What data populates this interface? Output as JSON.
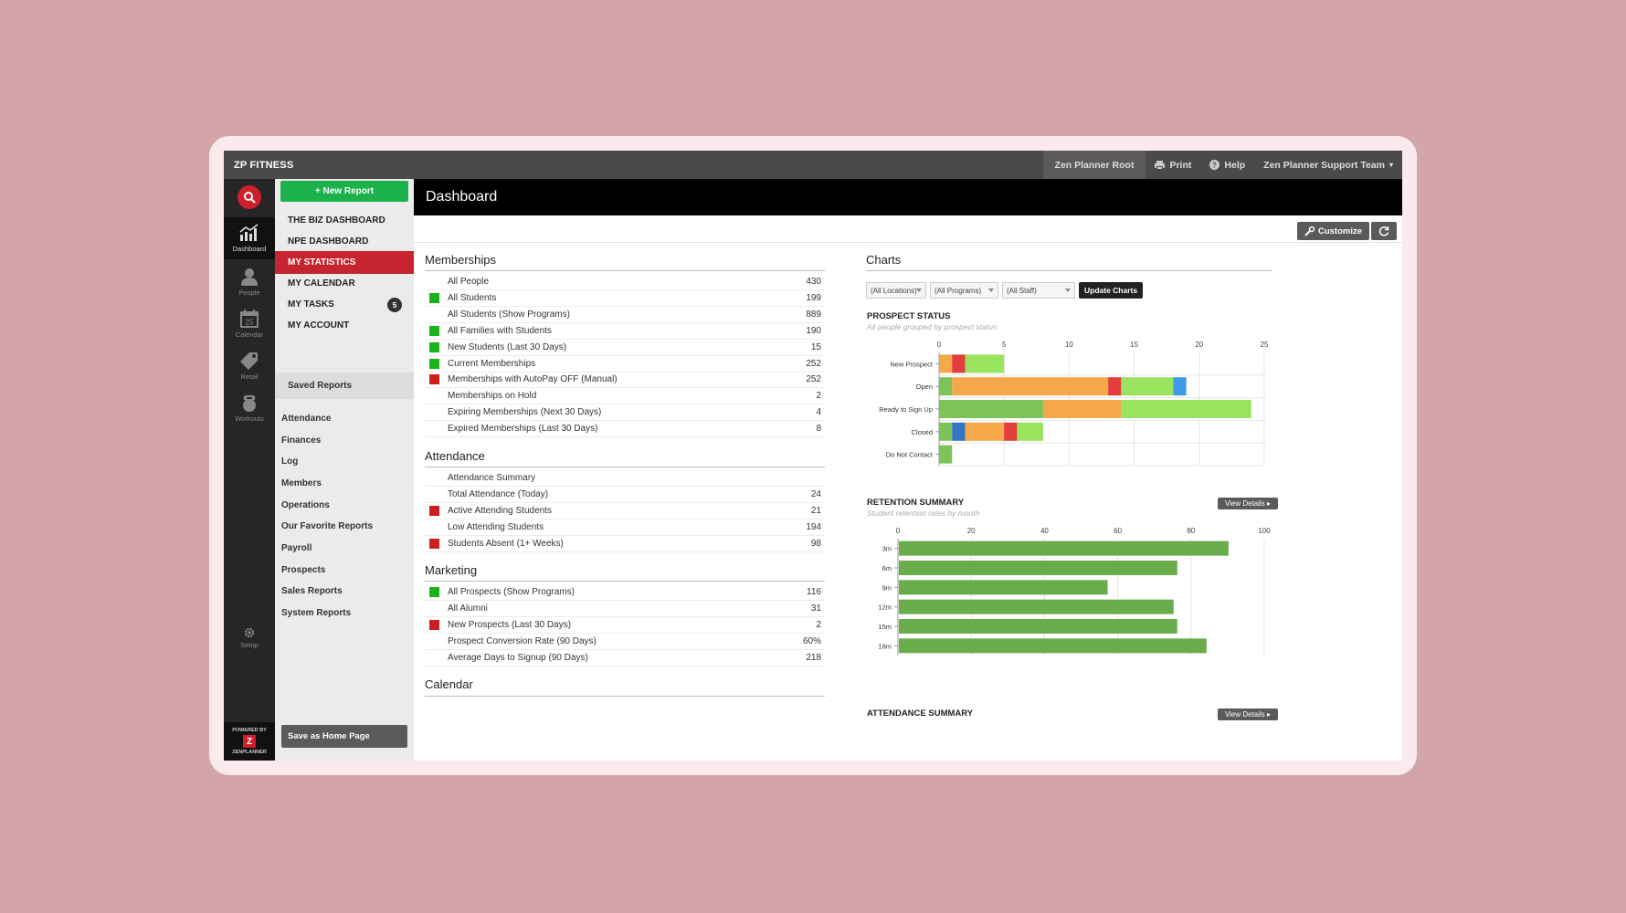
{
  "app": {
    "brand": "ZP FITNESS"
  },
  "topbar": {
    "root": "Zen Planner Root",
    "print": "Print",
    "help": "Help",
    "user": "Zen Planner Support Team"
  },
  "rail": {
    "dashboard": "Dashboard",
    "people": "People",
    "calendar": "Calendar",
    "calendar_day": "25",
    "retail": "Retail",
    "workouts": "Workouts",
    "setup": "Setup",
    "powered": "POWERED BY",
    "zen": "ZENPLANNER"
  },
  "sidenav": {
    "new_report": "+ New Report",
    "dashboards": [
      {
        "label": "THE BIZ DASHBOARD"
      },
      {
        "label": "NPE DASHBOARD"
      },
      {
        "label": "MY STATISTICS"
      },
      {
        "label": "MY CALENDAR"
      },
      {
        "label": "MY TASKS",
        "badge": "5"
      },
      {
        "label": "MY ACCOUNT"
      }
    ],
    "saved_reports": "Saved Reports",
    "reports": [
      "Attendance",
      "Finances",
      "Log",
      "Members",
      "Operations",
      "Our Favorite Reports",
      "Payroll",
      "Prospects",
      "Sales Reports",
      "System Reports"
    ],
    "save_home": "Save as Home Page"
  },
  "main": {
    "title": "Dashboard",
    "customize": "Customize"
  },
  "memberships": {
    "title": "Memberships",
    "rows": [
      {
        "label": "All People",
        "value": "430",
        "color": ""
      },
      {
        "label": "All Students",
        "value": "199",
        "color": "#1bb21b"
      },
      {
        "label": "All Students (Show Programs)",
        "value": "889",
        "color": ""
      },
      {
        "label": "All Families with Students",
        "value": "190",
        "color": "#1bb21b"
      },
      {
        "label": "New Students (Last 30 Days)",
        "value": "15",
        "color": "#1bb21b"
      },
      {
        "label": "Current Memberships",
        "value": "252",
        "color": "#1bb21b"
      },
      {
        "label": "Memberships with AutoPay OFF (Manual)",
        "value": "252",
        "color": "#cc1f1f"
      },
      {
        "label": "Memberships on Hold",
        "value": "2",
        "color": ""
      },
      {
        "label": "Expiring Memberships (Next 30 Days)",
        "value": "4",
        "color": ""
      },
      {
        "label": "Expired Memberships (Last 30 Days)",
        "value": "8",
        "color": ""
      }
    ]
  },
  "attendance": {
    "title": "Attendance",
    "rows": [
      {
        "label": "Attendance Summary",
        "value": "",
        "color": ""
      },
      {
        "label": "Total Attendance (Today)",
        "value": "24",
        "color": ""
      },
      {
        "label": "Active Attending Students",
        "value": "21",
        "color": "#cc1f1f"
      },
      {
        "label": "Low Attending Students",
        "value": "194",
        "color": ""
      },
      {
        "label": "Students Absent (1+ Weeks)",
        "value": "98",
        "color": "#cc1f1f"
      }
    ]
  },
  "marketing": {
    "title": "Marketing",
    "rows": [
      {
        "label": "All Prospects (Show Programs)",
        "value": "116",
        "color": "#1bb21b"
      },
      {
        "label": "All Alumni",
        "value": "31",
        "color": ""
      },
      {
        "label": "New Prospects (Last 30 Days)",
        "value": "2",
        "color": "#cc1f1f"
      },
      {
        "label": "Prospect Conversion Rate (90 Days)",
        "value": "60%",
        "color": ""
      },
      {
        "label": "Average Days to Signup (90 Days)",
        "value": "218",
        "color": ""
      }
    ]
  },
  "calendar_section": {
    "title": "Calendar"
  },
  "charts": {
    "title": "Charts",
    "filters": {
      "locations": "(All Locations)",
      "programs": "(All Programs)",
      "staff": "(All Staff)",
      "update": "Update Charts"
    },
    "prospect": {
      "title": "PROSPECT STATUS",
      "subtitle": "All people grouped by prospect status"
    },
    "retention": {
      "title": "RETENTION SUMMARY",
      "subtitle": "Student retention rates by month",
      "view": "View Details"
    },
    "attendance": {
      "title": "ATTENDANCE SUMMARY",
      "view": "View Details"
    }
  },
  "chart_data": [
    {
      "type": "bar",
      "orientation": "horizontal",
      "stacked": true,
      "title": "PROSPECT STATUS",
      "subtitle": "All people grouped by prospect status",
      "categories": [
        "New Prospect",
        "Open",
        "Ready to Sign Up",
        "Closed",
        "Do Not Contact"
      ],
      "xlim": [
        0,
        25
      ],
      "xticks": [
        0,
        5,
        10,
        15,
        20,
        25
      ],
      "grid": true,
      "stacks": [
        [
          {
            "value": 1,
            "color": "#f5a84a"
          },
          {
            "value": 1,
            "color": "#e23c3c"
          },
          {
            "value": 3,
            "color": "#99e35e"
          }
        ],
        [
          {
            "value": 1,
            "color": "#7cc35a"
          },
          {
            "value": 12,
            "color": "#f5a84a"
          },
          {
            "value": 1,
            "color": "#e23c3c"
          },
          {
            "value": 4,
            "color": "#99e35e"
          },
          {
            "value": 1,
            "color": "#3d9ae8"
          }
        ],
        [
          {
            "value": 8,
            "color": "#7cc35a"
          },
          {
            "value": 6,
            "color": "#f5a84a"
          },
          {
            "value": 10,
            "color": "#99e35e"
          }
        ],
        [
          {
            "value": 1,
            "color": "#7cc35a"
          },
          {
            "value": 1,
            "color": "#3475c5"
          },
          {
            "value": 3,
            "color": "#f5a84a"
          },
          {
            "value": 1,
            "color": "#e23c3c"
          },
          {
            "value": 2,
            "color": "#99e35e"
          }
        ],
        [
          {
            "value": 1,
            "color": "#7cc35a"
          }
        ]
      ]
    },
    {
      "type": "bar",
      "orientation": "horizontal",
      "title": "RETENTION SUMMARY",
      "subtitle": "Student retention rates by month",
      "categories": [
        "3m",
        "6m",
        "9m",
        "12m",
        "15m",
        "18m"
      ],
      "values": [
        90,
        76,
        57,
        75,
        76,
        84
      ],
      "xlim": [
        0,
        100
      ],
      "xticks": [
        0,
        20,
        40,
        60,
        80,
        100
      ],
      "color": "#6aac4c",
      "grid": true
    }
  ]
}
